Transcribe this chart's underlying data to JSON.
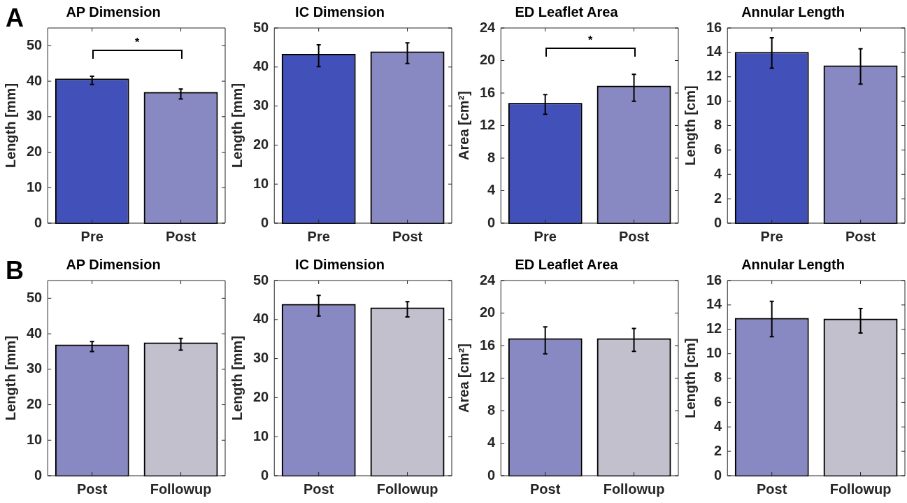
{
  "chart_data": [
    {
      "type": "bar",
      "title": "AP Dimension",
      "ylabel": "Length [mm]",
      "categories": [
        "Pre",
        "Post"
      ],
      "values": [
        40.3,
        36.5
      ],
      "colors": [
        "#4250b9",
        "#8888c2"
      ],
      "errors": [
        [
          39.1,
          41.4
        ],
        [
          35.0,
          37.8
        ]
      ],
      "ylim": [
        0,
        55
      ],
      "yticks": [
        0,
        10,
        20,
        30,
        40,
        50
      ],
      "annotations": [
        "A",
        "*"
      ]
    },
    {
      "type": "bar",
      "title": "IC Dimension",
      "ylabel": "Length [mm]",
      "categories": [
        "Pre",
        "Post"
      ],
      "values": [
        43.0,
        43.6
      ],
      "colors": [
        "#4250b9",
        "#8888c2"
      ],
      "errors": [
        [
          40.1,
          45.7
        ],
        [
          40.9,
          46.2
        ]
      ],
      "ylim": [
        0,
        50
      ],
      "yticks": [
        0,
        10,
        20,
        30,
        40,
        50
      ]
    },
    {
      "type": "bar",
      "title": "ED Leaflet Area",
      "ylabel": "Area [cm²]",
      "categories": [
        "Pre",
        "Post"
      ],
      "values": [
        14.6,
        16.7
      ],
      "colors": [
        "#4250b9",
        "#8888c2"
      ],
      "errors": [
        [
          13.4,
          15.8
        ],
        [
          15.0,
          18.3
        ]
      ],
      "ylim": [
        0,
        24
      ],
      "yticks": [
        0,
        4,
        8,
        12,
        16,
        20,
        24
      ],
      "annotations": [
        "*"
      ]
    },
    {
      "type": "bar",
      "title": "Annular Length",
      "ylabel": "Length [cm]",
      "categories": [
        "Pre",
        "Post"
      ],
      "values": [
        13.9,
        12.8
      ],
      "colors": [
        "#4250b9",
        "#8888c2"
      ],
      "errors": [
        [
          12.7,
          15.2
        ],
        [
          11.4,
          14.3
        ]
      ],
      "ylim": [
        0,
        16
      ],
      "yticks": [
        0,
        2,
        4,
        6,
        8,
        10,
        12,
        14,
        16
      ]
    },
    {
      "type": "bar",
      "title": "AP Dimension",
      "ylabel": "Length [mm]",
      "categories": [
        "Post",
        "Followup"
      ],
      "values": [
        36.5,
        37.1
      ],
      "colors": [
        "#8888c2",
        "#c2c0cc"
      ],
      "errors": [
        [
          35.0,
          37.8
        ],
        [
          35.4,
          38.7
        ]
      ],
      "ylim": [
        0,
        55
      ],
      "yticks": [
        0,
        10,
        20,
        30,
        40,
        50
      ],
      "annotations": [
        "B"
      ]
    },
    {
      "type": "bar",
      "title": "IC Dimension",
      "ylabel": "Length [mm]",
      "categories": [
        "Post",
        "Followup"
      ],
      "values": [
        43.6,
        42.7
      ],
      "colors": [
        "#8888c2",
        "#c2c0cc"
      ],
      "errors": [
        [
          40.9,
          46.2
        ],
        [
          40.7,
          44.6
        ]
      ],
      "ylim": [
        0,
        50
      ],
      "yticks": [
        0,
        10,
        20,
        30,
        40,
        50
      ]
    },
    {
      "type": "bar",
      "title": "ED Leaflet Area",
      "ylabel": "Area [cm²]",
      "categories": [
        "Post",
        "Followup"
      ],
      "values": [
        16.7,
        16.7
      ],
      "colors": [
        "#8888c2",
        "#c2c0cc"
      ],
      "errors": [
        [
          15.0,
          18.3
        ],
        [
          15.3,
          18.1
        ]
      ],
      "ylim": [
        0,
        24
      ],
      "yticks": [
        0,
        4,
        8,
        12,
        16,
        20,
        24
      ]
    },
    {
      "type": "bar",
      "title": "Annular Length",
      "ylabel": "Length [cm]",
      "categories": [
        "Post",
        "Followup"
      ],
      "values": [
        12.8,
        12.75
      ],
      "colors": [
        "#8888c2",
        "#c2c0cc"
      ],
      "errors": [
        [
          11.4,
          14.3
        ],
        [
          11.7,
          13.7
        ]
      ],
      "ylim": [
        0,
        16
      ],
      "yticks": [
        0,
        2,
        4,
        6,
        8,
        10,
        12,
        14,
        16
      ]
    }
  ]
}
